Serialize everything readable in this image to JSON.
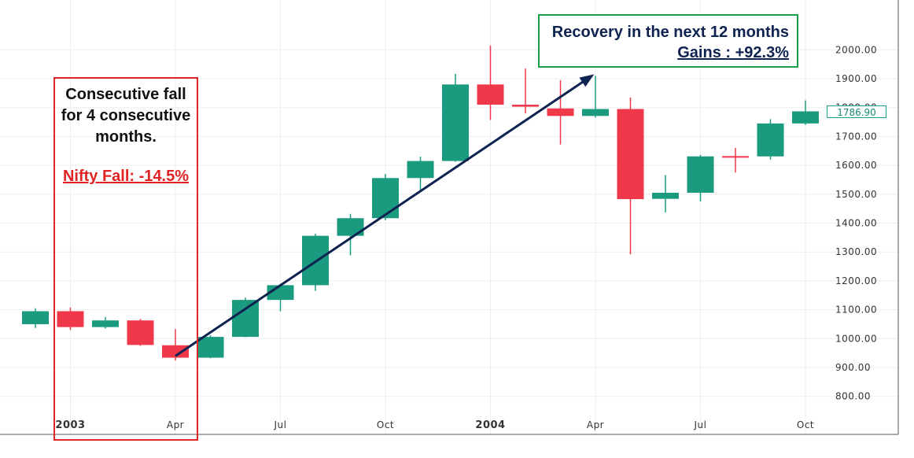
{
  "chart_data": {
    "type": "candlestick",
    "interval": "monthly",
    "ylim": [
      720,
      2100
    ],
    "yticks": [
      "800.00",
      "900.00",
      "1000.00",
      "1100.00",
      "1200.00",
      "1300.00",
      "1400.00",
      "1500.00",
      "1600.00",
      "1700.00",
      "1800.00",
      "1900.00",
      "2000.00"
    ],
    "ytick_values": [
      800,
      900,
      1000,
      1100,
      1200,
      1300,
      1400,
      1500,
      1600,
      1700,
      1800,
      1900,
      2000
    ],
    "xticks": [
      {
        "label": "2003",
        "index": 1,
        "major": true
      },
      {
        "label": "Apr",
        "index": 4,
        "major": false
      },
      {
        "label": "Jul",
        "index": 7,
        "major": false
      },
      {
        "label": "Oct",
        "index": 10,
        "major": false
      },
      {
        "label": "2004",
        "index": 13,
        "major": true
      },
      {
        "label": "Apr",
        "index": 16,
        "major": false
      },
      {
        "label": "Jul",
        "index": 19,
        "major": false
      },
      {
        "label": "Oct",
        "index": 22,
        "major": false
      }
    ],
    "candles": [
      {
        "month": "Dec 2002",
        "open": 1050,
        "high": 1105,
        "low": 1037,
        "close": 1095
      },
      {
        "month": "Jan 2003",
        "open": 1095,
        "high": 1108,
        "low": 1030,
        "close": 1040
      },
      {
        "month": "Feb 2003",
        "open": 1040,
        "high": 1075,
        "low": 1035,
        "close": 1063
      },
      {
        "month": "Mar 2003",
        "open": 1063,
        "high": 1068,
        "low": 975,
        "close": 978
      },
      {
        "month": "Apr 2003",
        "open": 977,
        "high": 1033,
        "low": 924,
        "close": 934
      },
      {
        "month": "May 2003",
        "open": 934,
        "high": 1012,
        "low": 932,
        "close": 1006
      },
      {
        "month": "Jun 2003",
        "open": 1006,
        "high": 1142,
        "low": 1005,
        "close": 1134
      },
      {
        "month": "Jul 2003",
        "open": 1134,
        "high": 1190,
        "low": 1095,
        "close": 1185
      },
      {
        "month": "Aug 2003",
        "open": 1185,
        "high": 1363,
        "low": 1165,
        "close": 1356
      },
      {
        "month": "Sep 2003",
        "open": 1356,
        "high": 1432,
        "low": 1288,
        "close": 1417
      },
      {
        "month": "Oct 2003",
        "open": 1417,
        "high": 1570,
        "low": 1410,
        "close": 1556
      },
      {
        "month": "Nov 2003",
        "open": 1556,
        "high": 1630,
        "low": 1510,
        "close": 1615
      },
      {
        "month": "Dec 2003",
        "open": 1615,
        "high": 1917,
        "low": 1612,
        "close": 1880
      },
      {
        "month": "Jan 2004",
        "open": 1880,
        "high": 2015,
        "low": 1757,
        "close": 1810
      },
      {
        "month": "Feb 2004",
        "open": 1810,
        "high": 1935,
        "low": 1780,
        "close": 1803
      },
      {
        "month": "Mar 2004",
        "open": 1797,
        "high": 1895,
        "low": 1672,
        "close": 1771
      },
      {
        "month": "Apr 2004",
        "open": 1771,
        "high": 1910,
        "low": 1765,
        "close": 1795
      },
      {
        "month": "May 2004",
        "open": 1795,
        "high": 1835,
        "low": 1292,
        "close": 1483
      },
      {
        "month": "Jun 2004",
        "open": 1484,
        "high": 1566,
        "low": 1437,
        "close": 1505
      },
      {
        "month": "Jul 2004",
        "open": 1505,
        "high": 1636,
        "low": 1475,
        "close": 1631
      },
      {
        "month": "Aug 2004",
        "open": 1632,
        "high": 1660,
        "low": 1575,
        "close": 1631
      },
      {
        "month": "Sep 2004",
        "open": 1631,
        "high": 1760,
        "low": 1620,
        "close": 1745
      },
      {
        "month": "Oct 2004",
        "open": 1745,
        "high": 1825,
        "low": 1740,
        "close": 1787
      }
    ],
    "last_price": "1786.90",
    "colors": {
      "up": "#1a9a7f",
      "down": "#f0384b",
      "arrow": "#0e2350",
      "grid": "#eeeeee",
      "axis": "#555555"
    },
    "annotations": {
      "fall_box": {
        "lines": [
          "Consecutive fall",
          "for 4 consecutive",
          "months."
        ],
        "highlight": "Nifty Fall: -14.5%",
        "border_color": "#e02424"
      },
      "recovery_box": {
        "line1": "Recovery in the next 12 months",
        "line2": "Gains : +92.3%",
        "border_color": "#1a9e4a"
      },
      "arrow": {
        "from": {
          "index": 4,
          "value": 940
        },
        "to": {
          "index": 16,
          "value": 1920
        }
      }
    }
  }
}
